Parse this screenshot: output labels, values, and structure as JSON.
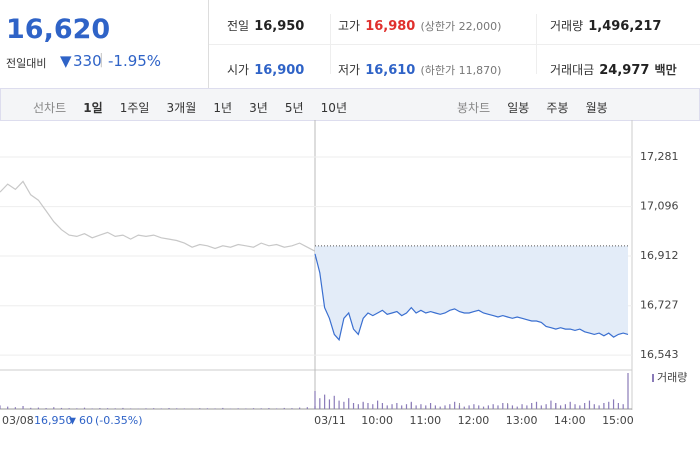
{
  "quote": {
    "price": "16,620",
    "change_label": "전일대비",
    "change": "330",
    "change_rate": "-1.95%"
  },
  "summary": [
    {
      "label": "전일",
      "value": "16,950"
    },
    {
      "label": "고가",
      "value": "16,980",
      "note": "(상한가 22,000)"
    },
    {
      "label": "거래량",
      "value": "1,496,217"
    },
    {
      "label": "시가",
      "value": "16,900"
    },
    {
      "label": "저가",
      "value": "16,610",
      "note": "(하한가 11,870)"
    },
    {
      "label": "거래대금",
      "value": "24,977",
      "unit": "백만"
    }
  ],
  "tabs": {
    "line_label": "선차트",
    "line": [
      "1일",
      "1주일",
      "3개월",
      "1년",
      "3년",
      "5년",
      "10년"
    ],
    "candle_label": "봉차트",
    "candle": [
      "일봉",
      "주봉",
      "월봉"
    ]
  },
  "chart_data": {
    "type": "line",
    "reference": 16950,
    "reference_color": "#555555",
    "area_color": "#e3ecf8",
    "series": [
      {
        "name": "03/08",
        "color": "#c8c8c8",
        "values": [
          17150,
          17180,
          17160,
          17190,
          17140,
          17120,
          17080,
          17040,
          17010,
          16990,
          16985,
          16995,
          16980,
          16990,
          17000,
          16985,
          16990,
          16975,
          16990,
          16985,
          16990,
          16980,
          16975,
          16970,
          16960,
          16945,
          16955,
          16950,
          16940,
          16950,
          16945,
          16955,
          16950,
          16945,
          16960,
          16950,
          16955,
          16945,
          16950,
          16960,
          16945,
          16930
        ],
        "volume": [
          3000,
          2000,
          1500,
          2500,
          1000,
          1200,
          800,
          1500,
          900,
          700,
          600,
          1100,
          500,
          800,
          700,
          600,
          900,
          500,
          400,
          600,
          700,
          500,
          800,
          600,
          500,
          400,
          700,
          600,
          500,
          900,
          400,
          600,
          500,
          700,
          600,
          800,
          500,
          900,
          700,
          1200,
          1500,
          2500
        ]
      },
      {
        "name": "03/11",
        "color": "#3a6fd0",
        "values": [
          16920,
          16850,
          16720,
          16680,
          16620,
          16600,
          16680,
          16700,
          16640,
          16620,
          16680,
          16700,
          16690,
          16700,
          16710,
          16695,
          16700,
          16705,
          16690,
          16700,
          16720,
          16700,
          16710,
          16700,
          16705,
          16700,
          16695,
          16700,
          16710,
          16715,
          16705,
          16700,
          16700,
          16705,
          16710,
          16700,
          16695,
          16690,
          16685,
          16690,
          16685,
          16680,
          16685,
          16680,
          16675,
          16670,
          16670,
          16665,
          16650,
          16645,
          16640,
          16645,
          16640,
          16640,
          16635,
          16640,
          16630,
          16625,
          16620,
          16625,
          16615,
          16625,
          16610,
          16620,
          16625,
          16620
        ],
        "volume": [
          15000,
          9000,
          12000,
          8000,
          11000,
          7000,
          6000,
          9000,
          5000,
          4000,
          6000,
          5000,
          4000,
          7000,
          5000,
          3000,
          4000,
          5000,
          3000,
          4000,
          6000,
          3000,
          4000,
          3000,
          5000,
          3000,
          2000,
          3000,
          4000,
          6000,
          3000,
          2000,
          3000,
          4000,
          3000,
          2000,
          3000,
          4000,
          3000,
          5000,
          4000,
          3000,
          2000,
          4000,
          3000,
          5000,
          6000,
          3000,
          4000,
          7000,
          5000,
          3000,
          4000,
          6000,
          4000,
          3000,
          5000,
          7000,
          4000,
          3000,
          5000,
          6000,
          8000,
          5000,
          4000,
          30000
        ]
      }
    ],
    "volume_label": "거래량",
    "volume_color": "#8a7bb8",
    "ylim": [
      16495,
      17400
    ],
    "yticks": [
      {
        "value": 16543,
        "label": "16,543"
      },
      {
        "value": 16727,
        "label": "16,727"
      },
      {
        "value": 16912,
        "label": "16,912"
      },
      {
        "value": 17096,
        "label": "17,096"
      },
      {
        "value": 17281,
        "label": "17,281"
      }
    ],
    "xticks": [
      "10:00",
      "11:00",
      "12:00",
      "13:00",
      "14:00",
      "15:00"
    ],
    "footer": {
      "close": "16,950",
      "change": "60",
      "rate": "(-0.35%)"
    }
  }
}
